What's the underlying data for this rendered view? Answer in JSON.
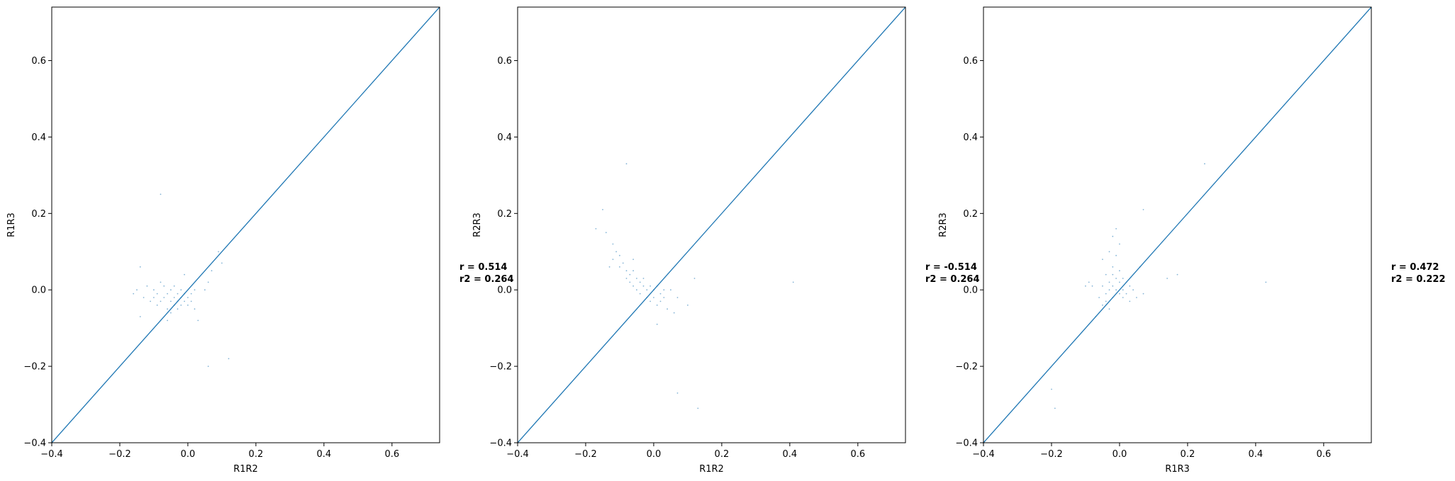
{
  "chart_data": [
    {
      "type": "scatter",
      "xlabel": "R1R2",
      "ylabel": "R1R3",
      "xlim": [
        -0.4,
        0.74
      ],
      "ylim": [
        -0.4,
        0.74
      ],
      "xticks": [
        -0.4,
        -0.2,
        0.0,
        0.2,
        0.4,
        0.6
      ],
      "yticks": [
        -0.4,
        -0.2,
        0.0,
        0.2,
        0.4,
        0.6
      ],
      "tick_labels": [
        "−0.4",
        "−0.2",
        "0.0",
        "0.2",
        "0.4",
        "0.6"
      ],
      "reference_line": "y = x",
      "line_color": "#1f77b4",
      "point_color": "#1f77b4",
      "stats": {
        "r": "r  = 0.514",
        "r2": "r2 = 0.264"
      },
      "points": [
        [
          -0.16,
          -0.01
        ],
        [
          -0.15,
          0.0
        ],
        [
          -0.14,
          0.06
        ],
        [
          -0.13,
          -0.02
        ],
        [
          -0.12,
          0.01
        ],
        [
          -0.11,
          -0.03
        ],
        [
          -0.1,
          -0.02
        ],
        [
          -0.1,
          0.0
        ],
        [
          -0.09,
          -0.04
        ],
        [
          -0.09,
          -0.01
        ],
        [
          -0.08,
          0.02
        ],
        [
          -0.08,
          -0.03
        ],
        [
          -0.07,
          -0.02
        ],
        [
          -0.07,
          0.01
        ],
        [
          -0.06,
          -0.05
        ],
        [
          -0.06,
          -0.01
        ],
        [
          -0.05,
          -0.03
        ],
        [
          -0.05,
          0.0
        ],
        [
          -0.05,
          -0.06
        ],
        [
          -0.04,
          -0.02
        ],
        [
          -0.04,
          -0.04
        ],
        [
          -0.04,
          0.01
        ],
        [
          -0.03,
          -0.03
        ],
        [
          -0.03,
          -0.01
        ],
        [
          -0.03,
          -0.05
        ],
        [
          -0.02,
          -0.02
        ],
        [
          -0.02,
          0.0
        ],
        [
          -0.02,
          -0.04
        ],
        [
          -0.01,
          -0.03
        ],
        [
          -0.01,
          -0.01
        ],
        [
          -0.01,
          0.04
        ],
        [
          0.0,
          -0.02
        ],
        [
          0.0,
          -0.04
        ],
        [
          0.01,
          -0.03
        ],
        [
          0.01,
          -0.01
        ],
        [
          0.02,
          -0.05
        ],
        [
          0.02,
          0.0
        ],
        [
          0.03,
          -0.08
        ],
        [
          0.05,
          0.0
        ],
        [
          0.06,
          0.02
        ],
        [
          0.07,
          0.05
        ],
        [
          0.1,
          0.07
        ],
        [
          -0.08,
          0.25
        ],
        [
          0.06,
          -0.2
        ],
        [
          0.12,
          -0.18
        ],
        [
          -0.14,
          -0.07
        ],
        [
          -0.06,
          -0.08
        ],
        [
          0.09,
          0.1
        ]
      ]
    },
    {
      "type": "scatter",
      "xlabel": "R1R2",
      "ylabel": "R2R3",
      "xlim": [
        -0.4,
        0.74
      ],
      "ylim": [
        -0.4,
        0.74
      ],
      "xticks": [
        -0.4,
        -0.2,
        0.0,
        0.2,
        0.4,
        0.6
      ],
      "yticks": [
        -0.4,
        -0.2,
        0.0,
        0.2,
        0.4,
        0.6
      ],
      "tick_labels": [
        "−0.4",
        "−0.2",
        "0.0",
        "0.2",
        "0.4",
        "0.6"
      ],
      "reference_line": "y = x",
      "line_color": "#1f77b4",
      "point_color": "#1f77b4",
      "stats": {
        "r": "r  = -0.514",
        "r2": "r2 = 0.264"
      },
      "points": [
        [
          -0.15,
          0.21
        ],
        [
          -0.17,
          0.16
        ],
        [
          -0.14,
          0.15
        ],
        [
          -0.12,
          0.12
        ],
        [
          -0.11,
          0.1
        ],
        [
          -0.12,
          0.08
        ],
        [
          -0.1,
          0.09
        ],
        [
          -0.1,
          0.06
        ],
        [
          -0.09,
          0.07
        ],
        [
          -0.08,
          0.05
        ],
        [
          -0.08,
          0.03
        ],
        [
          -0.07,
          0.04
        ],
        [
          -0.07,
          0.02
        ],
        [
          -0.06,
          0.05
        ],
        [
          -0.06,
          0.01
        ],
        [
          -0.05,
          0.03
        ],
        [
          -0.05,
          0.0
        ],
        [
          -0.04,
          0.02
        ],
        [
          -0.04,
          -0.01
        ],
        [
          -0.03,
          0.01
        ],
        [
          -0.03,
          0.03
        ],
        [
          -0.02,
          0.0
        ],
        [
          -0.02,
          -0.02
        ],
        [
          -0.01,
          0.01
        ],
        [
          -0.01,
          -0.03
        ],
        [
          0.0,
          0.0
        ],
        [
          0.0,
          -0.02
        ],
        [
          0.01,
          -0.04
        ],
        [
          0.01,
          0.01
        ],
        [
          0.02,
          -0.01
        ],
        [
          0.02,
          -0.03
        ],
        [
          0.03,
          0.0
        ],
        [
          0.03,
          -0.02
        ],
        [
          0.04,
          -0.05
        ],
        [
          0.05,
          0.0
        ],
        [
          0.06,
          -0.06
        ],
        [
          0.07,
          -0.02
        ],
        [
          0.1,
          -0.04
        ],
        [
          0.12,
          0.03
        ],
        [
          -0.08,
          0.33
        ],
        [
          0.07,
          -0.27
        ],
        [
          0.13,
          -0.31
        ],
        [
          0.41,
          0.02
        ],
        [
          -0.13,
          0.06
        ],
        [
          -0.06,
          0.08
        ],
        [
          0.01,
          -0.09
        ]
      ]
    },
    {
      "type": "scatter",
      "xlabel": "R1R3",
      "ylabel": "R2R3",
      "xlim": [
        -0.4,
        0.74
      ],
      "ylim": [
        -0.4,
        0.74
      ],
      "xticks": [
        -0.4,
        -0.2,
        0.0,
        0.2,
        0.4,
        0.6
      ],
      "yticks": [
        -0.4,
        -0.2,
        0.0,
        0.2,
        0.4,
        0.6
      ],
      "tick_labels": [
        "−0.4",
        "−0.2",
        "0.0",
        "0.2",
        "0.4",
        "0.6"
      ],
      "reference_line": "y = x",
      "line_color": "#1f77b4",
      "point_color": "#1f77b4",
      "stats": {
        "r": "r  = 0.472",
        "r2": "r2 = 0.222"
      },
      "points": [
        [
          -0.05,
          0.08
        ],
        [
          -0.03,
          0.1
        ],
        [
          -0.01,
          0.16
        ],
        [
          0.0,
          0.12
        ],
        [
          -0.02,
          0.06
        ],
        [
          -0.01,
          0.09
        ],
        [
          -0.04,
          0.04
        ],
        [
          -0.03,
          0.02
        ],
        [
          -0.02,
          0.04
        ],
        [
          -0.02,
          0.01
        ],
        [
          -0.01,
          0.03
        ],
        [
          -0.01,
          0.0
        ],
        [
          0.0,
          0.05
        ],
        [
          0.0,
          0.02
        ],
        [
          0.0,
          -0.01
        ],
        [
          0.01,
          0.03
        ],
        [
          0.01,
          0.0
        ],
        [
          0.01,
          -0.02
        ],
        [
          0.02,
          0.02
        ],
        [
          0.02,
          -0.01
        ],
        [
          0.03,
          0.01
        ],
        [
          0.03,
          -0.03
        ],
        [
          -0.04,
          -0.01
        ],
        [
          -0.05,
          0.01
        ],
        [
          -0.06,
          -0.02
        ],
        [
          -0.05,
          -0.04
        ],
        [
          -0.04,
          -0.03
        ],
        [
          -0.03,
          -0.05
        ],
        [
          -0.02,
          -0.02
        ],
        [
          -0.03,
          0.0
        ],
        [
          -0.08,
          0.01
        ],
        [
          -0.09,
          0.02
        ],
        [
          -0.1,
          0.01
        ],
        [
          0.04,
          0.0
        ],
        [
          0.05,
          -0.02
        ],
        [
          0.07,
          -0.01
        ],
        [
          0.14,
          0.03
        ],
        [
          0.17,
          0.04
        ],
        [
          0.07,
          0.21
        ],
        [
          0.25,
          0.33
        ],
        [
          -0.19,
          -0.31
        ],
        [
          -0.2,
          -0.26
        ],
        [
          0.43,
          0.02
        ],
        [
          -0.07,
          -0.07
        ],
        [
          0.06,
          0.06
        ],
        [
          -0.02,
          0.14
        ]
      ]
    }
  ]
}
